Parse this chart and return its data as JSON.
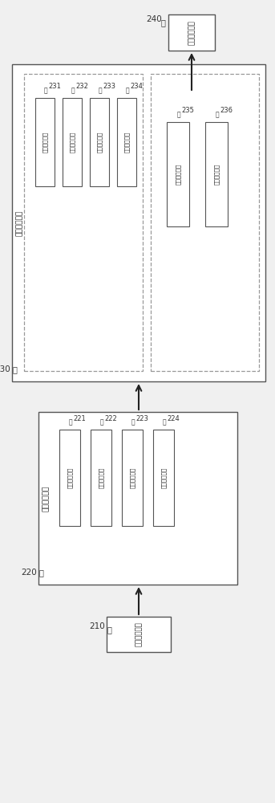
{
  "bg_color": "#f0f0f0",
  "colors": {
    "box_face": "#ffffff",
    "box_edge": "#555555",
    "dashed_edge": "#999999",
    "arrow": "#222222",
    "text": "#222222",
    "ref_text": "#333333",
    "label_bg": "#f0f0f0"
  },
  "blocks": {
    "energy_ctrl": {
      "label": "能量管控模块",
      "ref": "240"
    },
    "wind_mgr": {
      "label": "风机管理模块",
      "ref": "230"
    },
    "wind_sub1": [
      {
        "label": "组合确定模块",
        "ref": "231"
      },
      {
        "label": "概率排序模块",
        "ref": "232"
      },
      {
        "label": "风机选择模块",
        "ref": "233"
      },
      {
        "label": "组合选择模块",
        "ref": "234"
      }
    ],
    "wind_sub2": [
      {
        "label": "范围确定模块",
        "ref": "235"
      },
      {
        "label": "能量分配模块",
        "ref": "236"
      }
    ],
    "db_module": {
      "label": "数据建库模块",
      "ref": "220"
    },
    "db_sub": [
      {
        "label": "关系设置模块",
        "ref": "221"
      },
      {
        "label": "数据获取模块",
        "ref": "222"
      },
      {
        "label": "概率统计模块",
        "ref": "223"
      },
      {
        "label": "概率存储模块",
        "ref": "224"
      }
    ],
    "data_collect": {
      "label": "数据采集模块",
      "ref": "210"
    }
  }
}
